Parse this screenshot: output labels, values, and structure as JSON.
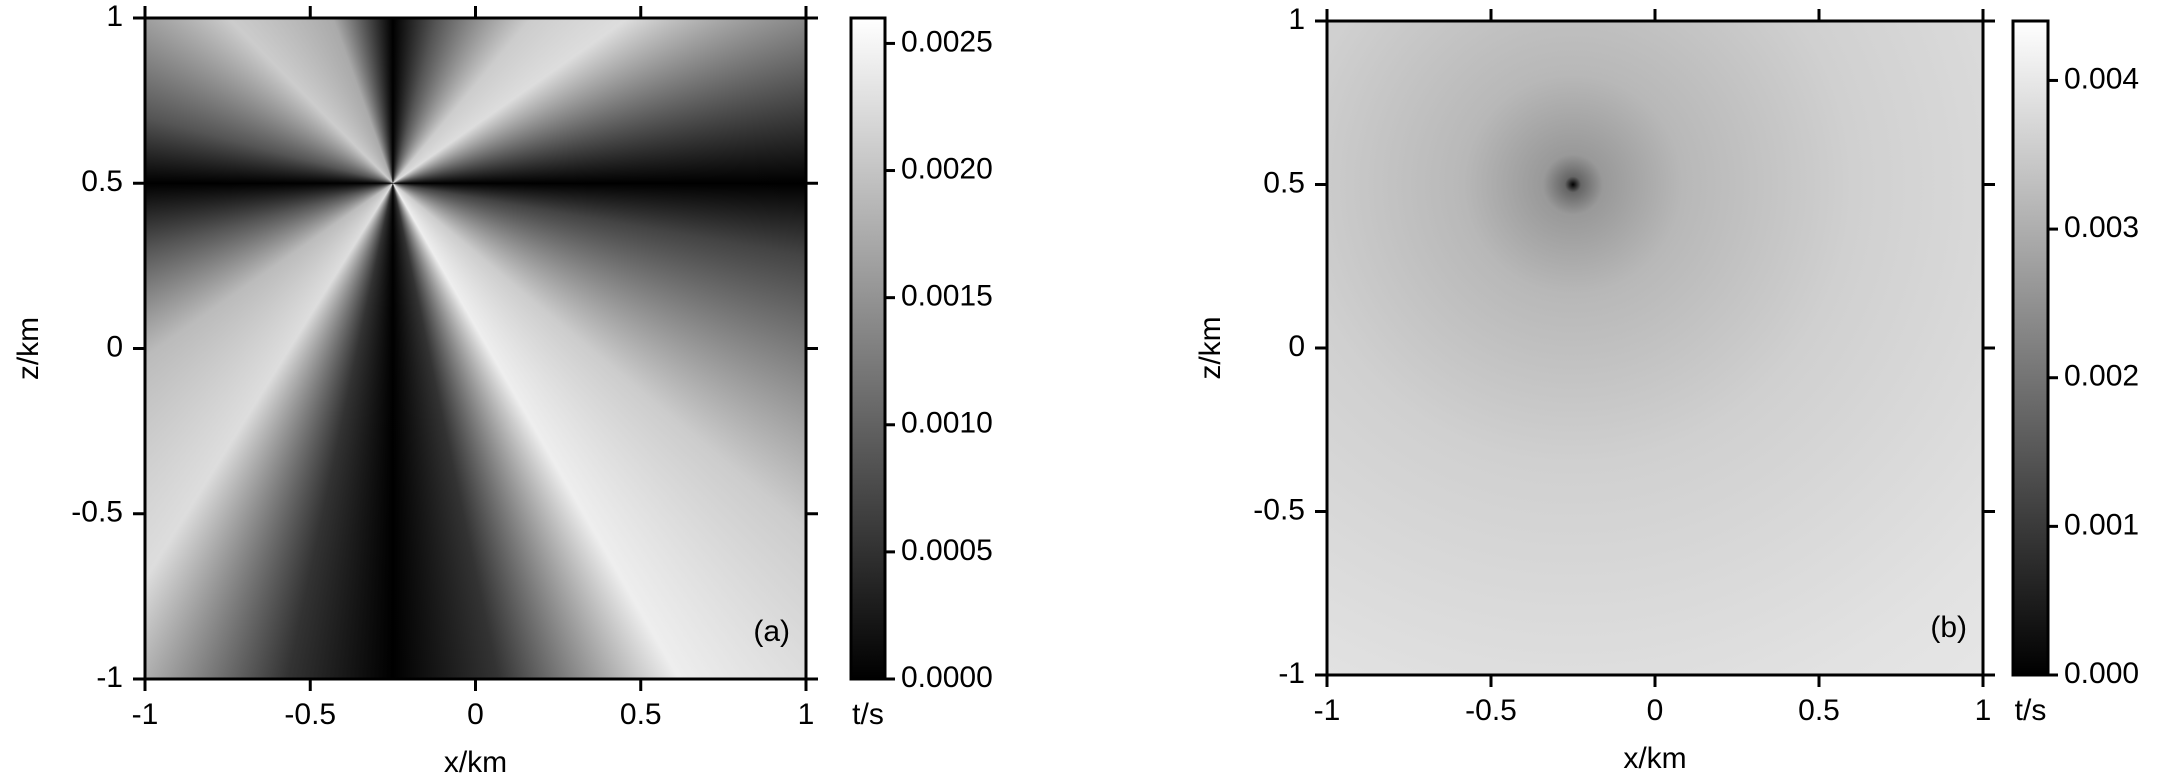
{
  "chart_data": [
    {
      "type": "heatmap",
      "panel_label": "(a)",
      "xlabel": "x/km",
      "ylabel": "z/km",
      "colorbar_label": "t/s",
      "xlim": [
        -1,
        1
      ],
      "ylim": [
        -1,
        1
      ],
      "xticks": [
        -1,
        -0.5,
        0,
        0.5,
        1
      ],
      "yticks": [
        -1,
        -0.5,
        0,
        0.5,
        1
      ],
      "clim": [
        0,
        0.0026
      ],
      "cticks": [
        {
          "value": 0,
          "label": "0.0000"
        },
        {
          "value": 0.0005,
          "label": "0.0005"
        },
        {
          "value": 0.001,
          "label": "0.0010"
        },
        {
          "value": 0.0015,
          "label": "0.0015"
        },
        {
          "value": 0.002,
          "label": "0.0020"
        },
        {
          "value": 0.0025,
          "label": "0.0025"
        }
      ],
      "colormap": "gray"
    },
    {
      "type": "heatmap",
      "panel_label": "(b)",
      "xlabel": "x/km",
      "ylabel": "z/km",
      "colorbar_label": "t/s",
      "xlim": [
        -1,
        1
      ],
      "ylim": [
        -1,
        1
      ],
      "xticks": [
        -1,
        -0.5,
        0,
        0.5,
        1
      ],
      "yticks": [
        -1,
        -0.5,
        0,
        0.5,
        1
      ],
      "clim": [
        0,
        0.0044
      ],
      "cticks": [
        {
          "value": 0,
          "label": "0.000"
        },
        {
          "value": 0.001,
          "label": "0.001"
        },
        {
          "value": 0.002,
          "label": "0.002"
        },
        {
          "value": 0.003,
          "label": "0.003"
        },
        {
          "value": 0.004,
          "label": "0.004"
        }
      ],
      "colormap": "gray"
    }
  ]
}
